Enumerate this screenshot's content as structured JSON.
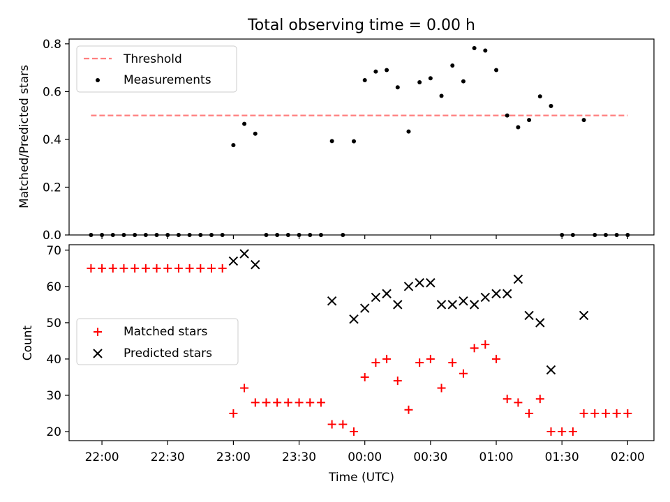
{
  "chart_data": [
    {
      "type": "scatter",
      "title": "Total observing time = 0.00 h",
      "ylabel": "Matched/Predicted stars",
      "xlabel": "",
      "ylim": [
        0,
        0.82
      ],
      "yticks": [
        "0.0",
        "0.2",
        "0.4",
        "0.6",
        "0.8"
      ],
      "legend_position": "top-left",
      "legend": [
        {
          "label": "Threshold",
          "kind": "dashed-line",
          "color": "#ff7f7f"
        },
        {
          "label": "Measurements",
          "kind": "dot",
          "color": "#000000"
        }
      ],
      "threshold": {
        "name": "Threshold",
        "value": 0.5,
        "x_start": "21:55",
        "x_end": "02:00",
        "color": "#ff7f7f"
      },
      "series": [
        {
          "name": "Measurements",
          "color": "#000000",
          "x": [
            "21:55",
            "22:00",
            "22:05",
            "22:10",
            "22:15",
            "22:20",
            "22:25",
            "22:30",
            "22:35",
            "22:40",
            "22:45",
            "22:50",
            "22:55",
            "23:00",
            "23:05",
            "23:10",
            "23:15",
            "23:20",
            "23:25",
            "23:30",
            "23:35",
            "23:40",
            "23:45",
            "23:50",
            "23:55",
            "00:00",
            "00:05",
            "00:10",
            "00:15",
            "00:20",
            "00:25",
            "00:30",
            "00:35",
            "00:40",
            "00:45",
            "00:50",
            "00:55",
            "01:00",
            "01:05",
            "01:10",
            "01:15",
            "01:20",
            "01:25",
            "01:30",
            "01:35",
            "01:40",
            "01:45",
            "01:50",
            "01:55",
            "02:00"
          ],
          "y": [
            0,
            0,
            0,
            0,
            0,
            0,
            0,
            0,
            0,
            0,
            0,
            0,
            0,
            0.376,
            0.465,
            0.424,
            0,
            0,
            0,
            0,
            0,
            0,
            0.393,
            0,
            0.392,
            0.648,
            0.684,
            0.69,
            0.618,
            0.433,
            0.639,
            0.656,
            0.582,
            0.709,
            0.643,
            0.782,
            0.772,
            0.69,
            0.5,
            0.451,
            0.481,
            0.58,
            0.54,
            0,
            0,
            0.481,
            0,
            0,
            0,
            0
          ]
        }
      ]
    },
    {
      "type": "scatter",
      "xlabel": "Time (UTC)",
      "ylabel": "Count",
      "ylim": [
        17.5,
        71.5
      ],
      "yticks": [
        "20",
        "30",
        "40",
        "50",
        "60",
        "70"
      ],
      "xticks": [
        "22:00",
        "22:30",
        "23:00",
        "23:30",
        "00:00",
        "00:30",
        "01:00",
        "01:30",
        "02:00"
      ],
      "xlim": [
        "21:45",
        "02:12"
      ],
      "legend_position": "center-left",
      "legend": [
        {
          "label": "Matched stars",
          "kind": "plus",
          "color": "#ff0000"
        },
        {
          "label": "Predicted stars",
          "kind": "cross",
          "color": "#000000"
        }
      ],
      "series": [
        {
          "name": "Matched stars",
          "marker": "plus",
          "color": "#ff0000",
          "x": [
            "21:55",
            "22:00",
            "22:05",
            "22:10",
            "22:15",
            "22:20",
            "22:25",
            "22:30",
            "22:35",
            "22:40",
            "22:45",
            "22:50",
            "22:55",
            "23:00",
            "23:05",
            "23:10",
            "23:15",
            "23:20",
            "23:25",
            "23:30",
            "23:35",
            "23:40",
            "23:45",
            "23:50",
            "23:55",
            "00:00",
            "00:05",
            "00:10",
            "00:15",
            "00:20",
            "00:25",
            "00:30",
            "00:35",
            "00:40",
            "00:45",
            "00:50",
            "00:55",
            "01:00",
            "01:05",
            "01:10",
            "01:15",
            "01:20",
            "01:25",
            "01:30",
            "01:35",
            "01:40",
            "01:45",
            "01:50",
            "01:55",
            "02:00"
          ],
          "y": [
            65,
            65,
            65,
            65,
            65,
            65,
            65,
            65,
            65,
            65,
            65,
            65,
            65,
            25,
            32,
            28,
            28,
            28,
            28,
            28,
            28,
            28,
            22,
            22,
            20,
            35,
            39,
            40,
            34,
            26,
            39,
            40,
            32,
            39,
            36,
            43,
            44,
            40,
            29,
            28,
            25,
            29,
            20,
            20,
            20,
            25,
            25,
            25,
            25,
            25
          ]
        },
        {
          "name": "Predicted stars",
          "marker": "cross",
          "color": "#000000",
          "x": [
            "23:00",
            "23:05",
            "23:10",
            "23:45",
            "23:55",
            "00:00",
            "00:05",
            "00:10",
            "00:15",
            "00:20",
            "00:25",
            "00:30",
            "00:35",
            "00:40",
            "00:45",
            "00:50",
            "00:55",
            "01:00",
            "01:05",
            "01:10",
            "01:15",
            "01:20",
            "01:25",
            "01:40"
          ],
          "y": [
            67,
            69,
            66,
            56,
            51,
            54,
            57,
            58,
            55,
            60,
            61,
            61,
            55,
            55,
            56,
            55,
            57,
            58,
            58,
            62,
            52,
            50,
            37,
            52
          ]
        }
      ]
    }
  ]
}
